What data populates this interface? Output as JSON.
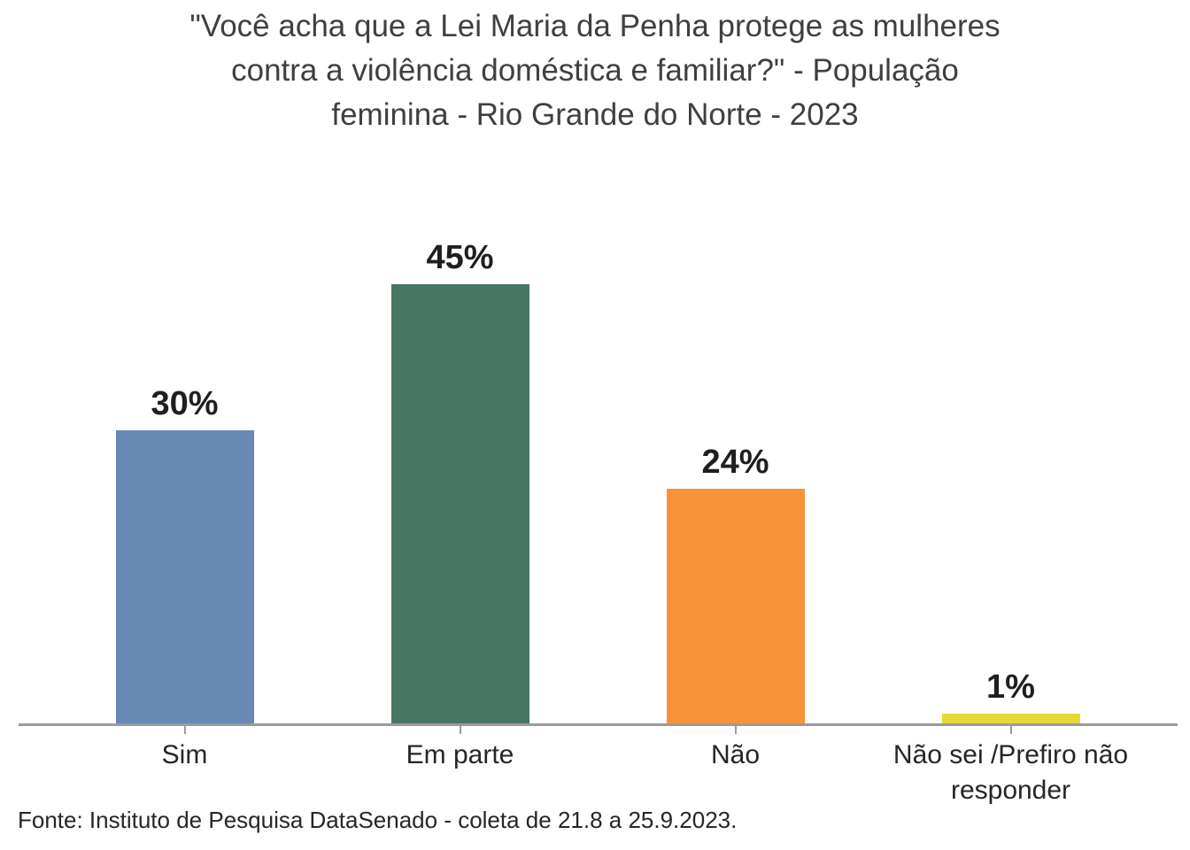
{
  "chart_data": {
    "type": "bar",
    "title": "\"Você acha que a Lei Maria da Penha protege as mulheres contra a violência doméstica e familiar?\" - População feminina - Rio Grande do Norte - 2023",
    "title_lines": [
      "\"Você acha que a Lei Maria da Penha protege as mulheres",
      "contra a violência doméstica e familiar?\" - População",
      "feminina - Rio Grande do Norte - 2023"
    ],
    "categories": [
      "Sim",
      "Em parte",
      "Não",
      "Não sei /Prefiro não responder"
    ],
    "values": [
      30,
      45,
      24,
      1
    ],
    "value_labels": [
      "30%",
      "45%",
      "24%",
      "1%"
    ],
    "bar_colors": [
      "#6789b3",
      "#477663",
      "#f9933a",
      "#e5d938"
    ],
    "xlabel": "",
    "ylabel": "",
    "ylim": [
      0,
      50
    ],
    "grid": false,
    "legend": false,
    "source": "Fonte: Instituto de Pesquisa DataSenado - coleta de 21.8 a 25.9.2023."
  },
  "colors": {
    "title_text": "#3f3f3f",
    "value_label_text": "#1f1f1f",
    "category_label_text": "#262626",
    "axis_line": "#9b9b9b",
    "background": "#ffffff"
  }
}
